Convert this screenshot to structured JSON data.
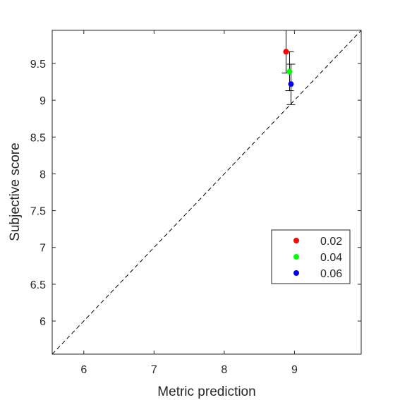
{
  "chart_data": {
    "type": "scatter",
    "xlabel": "Metric prediction",
    "ylabel": "Subjective score",
    "xlim": [
      5.55,
      9.95
    ],
    "ylim": [
      5.55,
      9.95
    ],
    "x_ticks": [
      6,
      7,
      8,
      9
    ],
    "x_tick_labels": [
      "6",
      "7",
      "8",
      "9"
    ],
    "y_ticks": [
      6,
      6.5,
      7,
      7.5,
      8,
      8.5,
      9,
      9.5
    ],
    "y_tick_labels": [
      "6",
      "6.5",
      "7",
      "7.5",
      "8",
      "8.5",
      "9",
      "9.5"
    ],
    "grid": false,
    "reference_line": {
      "style": "dashed",
      "from": [
        5.55,
        5.55
      ],
      "to": [
        9.95,
        9.95
      ]
    },
    "legend_position": "bottom-right",
    "series": [
      {
        "name": "0.02",
        "color": "#ff0000",
        "x": 8.88,
        "y": 9.66,
        "y_err_low": 9.37,
        "y_err_high": 9.95
      },
      {
        "name": "0.04",
        "color": "#00ff00",
        "x": 8.93,
        "y": 9.39,
        "y_err_low": 9.13,
        "y_err_high": 9.66
      },
      {
        "name": "0.06",
        "color": "#0000ff",
        "x": 8.95,
        "y": 9.22,
        "y_err_low": 8.94,
        "y_err_high": 9.49
      }
    ]
  }
}
